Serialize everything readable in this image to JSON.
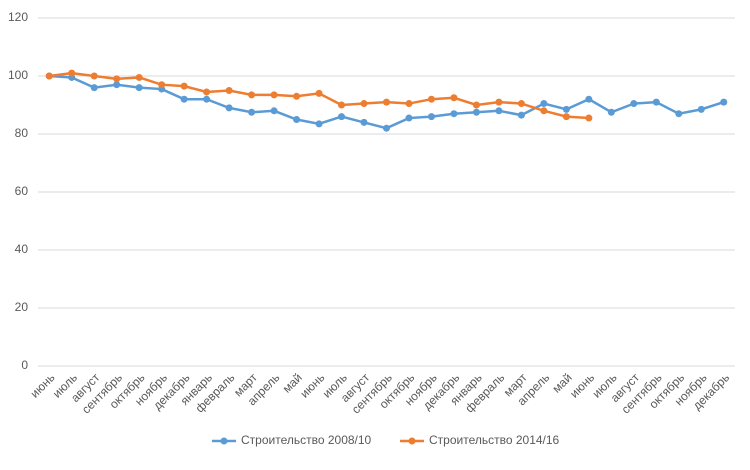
{
  "chart_data": {
    "type": "line",
    "categories": [
      "июнь",
      "июль",
      "август",
      "сентябрь",
      "октябрь",
      "ноябрь",
      "декабрь",
      "январь",
      "февраль",
      "март",
      "апрель",
      "май",
      "июнь",
      "июль",
      "август",
      "сентябрь",
      "октябрь",
      "ноябрь",
      "декабрь",
      "январь",
      "февраль",
      "март",
      "апрель",
      "май",
      "июнь",
      "июль",
      "август",
      "сентябрь",
      "октябрь",
      "ноябрь",
      "декабрь"
    ],
    "series": [
      {
        "name": "Строительство 2008/10",
        "color": "#5b9bd5",
        "values": [
          100,
          99.5,
          96,
          97,
          96,
          95.5,
          92,
          92,
          89,
          87.5,
          88,
          85,
          83.5,
          86,
          84,
          82,
          85.5,
          86,
          87,
          87.5,
          88,
          86.5,
          90.5,
          88.5,
          92,
          87.5,
          90.5,
          91,
          87,
          88.5,
          91
        ]
      },
      {
        "name": "Строительство 2014/16",
        "color": "#ed7d31",
        "values": [
          100,
          101,
          100,
          99,
          99.5,
          97,
          96.5,
          94.5,
          95,
          93.5,
          93.5,
          93,
          94,
          90,
          90.5,
          91,
          90.5,
          92,
          92.5,
          90,
          91,
          90.5,
          88,
          86,
          85.5,
          null,
          null,
          null,
          null,
          null,
          null
        ]
      }
    ],
    "ylim": [
      0,
      120
    ],
    "yticks": [
      0,
      20,
      40,
      60,
      80,
      100,
      120
    ],
    "grid": true,
    "legend": "bottom"
  }
}
